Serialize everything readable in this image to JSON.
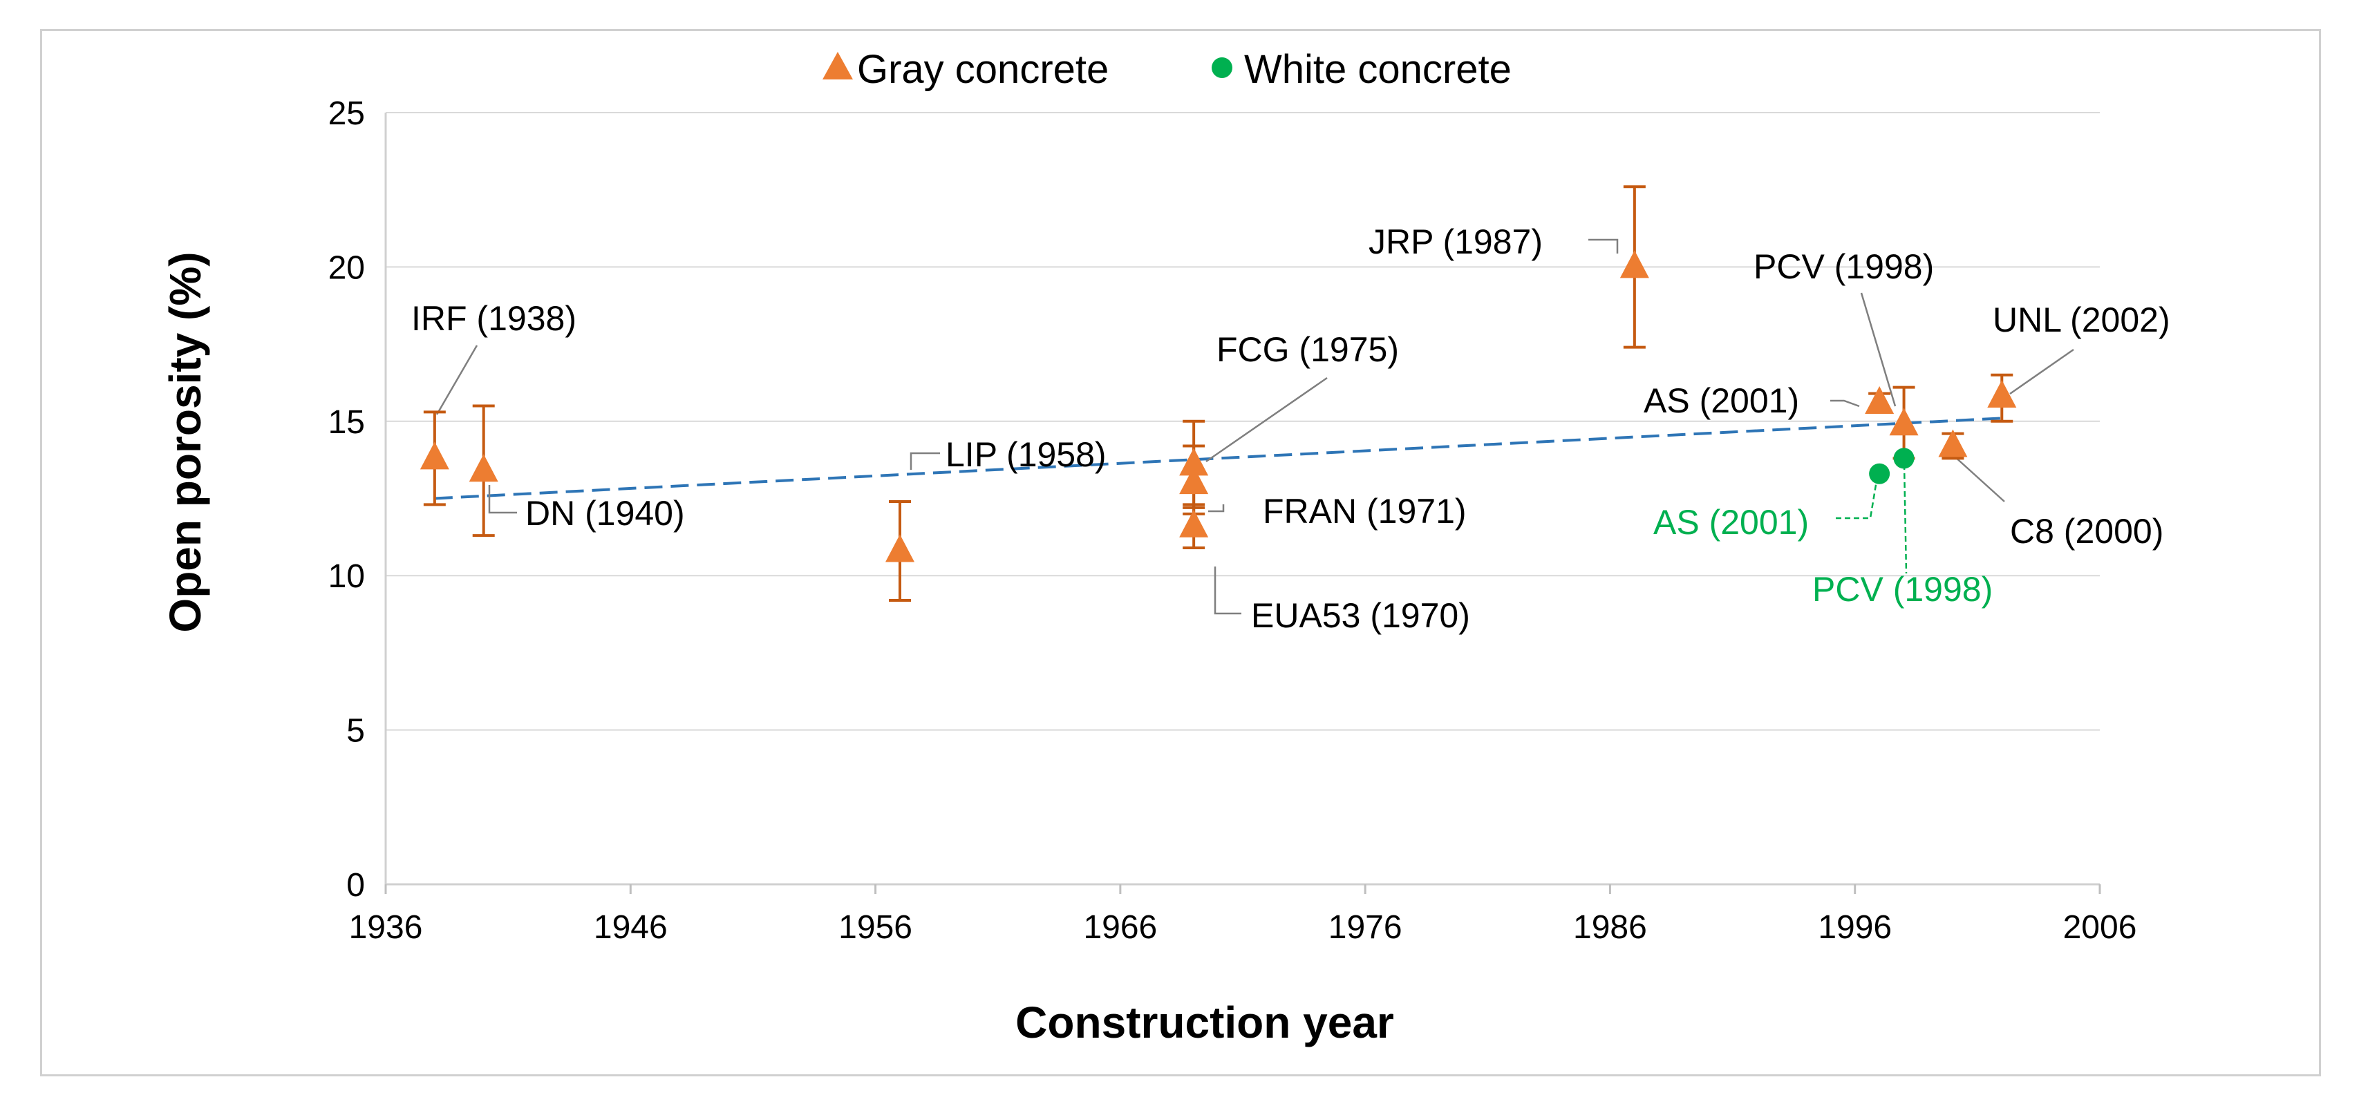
{
  "chart_data": {
    "type": "scatter",
    "title": "",
    "xlabel": "Construction year",
    "ylabel": "Open porosity (%)",
    "xlim": [
      1936,
      2006
    ],
    "ylim": [
      0,
      25
    ],
    "x_ticks": [
      1936,
      1946,
      1956,
      1966,
      1976,
      1986,
      1996,
      2006
    ],
    "y_ticks": [
      0,
      5,
      10,
      15,
      20,
      25
    ],
    "grid": "horizontal",
    "legend_position": "top-center",
    "series": [
      {
        "name": "Gray concrete",
        "marker": "triangle",
        "color": "#ED7D31",
        "error_color": "#C55A11",
        "points": [
          {
            "label": "IRF (1938)",
            "x": 1938,
            "y": 13.8,
            "err_low": 12.3,
            "err_high": 15.3
          },
          {
            "label": "DN (1940)",
            "x": 1940,
            "y": 13.4,
            "err_low": 11.3,
            "err_high": 15.5
          },
          {
            "label": "LIP (1958)",
            "x": 1957,
            "y": 10.8,
            "err_low": 9.2,
            "err_high": 12.4
          },
          {
            "label": "FCG (1975)",
            "x": 1969,
            "y": 13.6,
            "err_low": 12.2,
            "err_high": 15.0
          },
          {
            "label": "FRAN (1971)",
            "x": 1969,
            "y": 13.0,
            "err_low": 12.0,
            "err_high": 14.2
          },
          {
            "label": "EUA53 (1970)",
            "x": 1969,
            "y": 11.6,
            "err_low": 10.9,
            "err_high": 12.3
          },
          {
            "label": "JRP (1987)",
            "x": 1987,
            "y": 20.0,
            "err_low": 17.4,
            "err_high": 22.6
          },
          {
            "label": "AS (2001)",
            "x": 1997,
            "y": 15.6,
            "err_low": 15.3,
            "err_high": 15.9
          },
          {
            "label": "PCV (1998)",
            "x": 1998,
            "y": 14.9,
            "err_low": 13.8,
            "err_high": 16.1
          },
          {
            "label": "C8 (2000)",
            "x": 2000,
            "y": 14.2,
            "err_low": 13.8,
            "err_high": 14.6
          },
          {
            "label": "UNL (2002)",
            "x": 2002,
            "y": 15.8,
            "err_low": 15.0,
            "err_high": 16.5
          }
        ]
      },
      {
        "name": "White concrete",
        "marker": "circle",
        "color": "#00B050",
        "points": [
          {
            "label": "AS (2001)",
            "x": 1997,
            "y": 13.3
          },
          {
            "label": "PCV (1998)",
            "x": 1998,
            "y": 13.8
          }
        ]
      }
    ],
    "trendline": {
      "style": "dashed",
      "color": "#2E75B6",
      "x": [
        1938,
        2002
      ],
      "y": [
        12.5,
        15.1
      ]
    }
  }
}
